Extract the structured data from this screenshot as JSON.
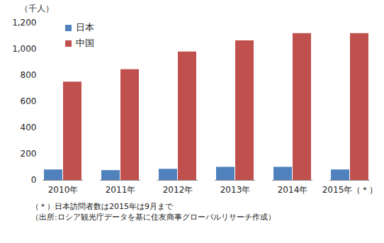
{
  "chart_data": {
    "type": "bar",
    "ylabel": "（千人）",
    "categories": [
      "2010年",
      "2011年",
      "2012年",
      "2013年",
      "2014年",
      "2015年（＊）"
    ],
    "series": [
      {
        "name": "日本",
        "color": "#4f81bd",
        "values": [
          80,
          75,
          85,
          100,
          100,
          80
        ]
      },
      {
        "name": "中国",
        "color": "#c0504d",
        "values": [
          750,
          845,
          980,
          1065,
          1120,
          1120
        ]
      }
    ],
    "ylim": [
      0,
      1200
    ],
    "yticks": [
      0,
      200,
      400,
      600,
      800,
      {
        "value": 1000,
        "label": "1,000"
      },
      {
        "value": 1200,
        "label": "1,200"
      }
    ],
    "grid": false,
    "legend": "top-left",
    "notes": [
      "（＊）日本訪問者数は2015年は9月まで",
      "（出所:ロシア観光庁データを基に住友商事グローバルリサーチ作成）"
    ]
  }
}
